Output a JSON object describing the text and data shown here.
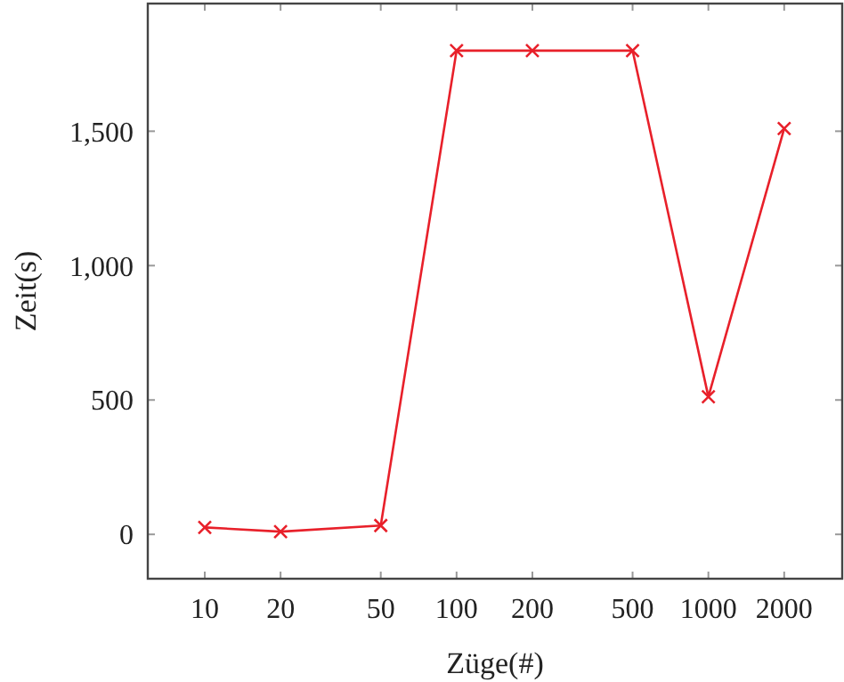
{
  "chart_data": {
    "type": "line",
    "xlabel": "Züge(#)",
    "ylabel": "Zeit(s)",
    "log": "x",
    "x": [
      10,
      20,
      50,
      100,
      200,
      500,
      1000,
      2000
    ],
    "series": [
      {
        "color": "#e8202a",
        "values": [
          26,
          10,
          33,
          1800,
          1800,
          1800,
          512,
          1510
        ]
      }
    ],
    "xlim": [
      5.94,
      3400
    ],
    "xticks": [
      10,
      20,
      50,
      100,
      200,
      500,
      1000,
      2000
    ],
    "ylim": [
      -165,
      1975
    ],
    "yticks": [
      0,
      500,
      {
        "value": 1000,
        "label": "1,000"
      },
      {
        "value": 1500,
        "label": "1,500"
      }
    ],
    "marker": "cross",
    "line_style": "solid",
    "grid": false
  }
}
